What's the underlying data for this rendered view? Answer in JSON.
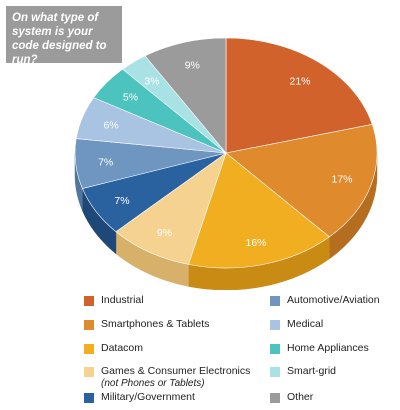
{
  "title": "On what type of system is your code designed to run?",
  "chart_data": {
    "type": "pie",
    "title": "On what type of system is your code designed to run?",
    "slices": [
      {
        "label": "Industrial",
        "value": 21,
        "value_label": "21%",
        "color": "#d2622b",
        "side": "#a84c1f"
      },
      {
        "label": "Smartphones & Tablets",
        "value": 17,
        "value_label": "17%",
        "color": "#df8a2c",
        "side": "#b56e20"
      },
      {
        "label": "Datacom",
        "value": 16,
        "value_label": "16%",
        "color": "#f2ae21",
        "side": "#c98b14"
      },
      {
        "label": "Games & Consumer Electronics",
        "sublabel": "(not Phones or Tablets)",
        "value": 9,
        "value_label": "9%",
        "color": "#f6d291",
        "side": "#d7b06a"
      },
      {
        "label": "Military/Government",
        "value": 7,
        "value_label": "7%",
        "color": "#2a62a0",
        "side": "#1d4878"
      },
      {
        "label": "Automotive/Aviation",
        "value": 7,
        "value_label": "7%",
        "color": "#6e96c0",
        "side": "#52769b"
      },
      {
        "label": "Medical",
        "value": 6,
        "value_label": "6%",
        "color": "#a9c3e2",
        "side": "#87a0bf"
      },
      {
        "label": "Home Appliances",
        "value": 5,
        "value_label": "5%",
        "color": "#4cc3bf",
        "side": "#379b98"
      },
      {
        "label": "Smart-grid",
        "value": 3,
        "value_label": "3%",
        "color": "#a8e2e4",
        "side": "#82bcbe"
      },
      {
        "label": "Other",
        "value": 9,
        "value_label": "9%",
        "color": "#9b9b9b",
        "side": "#767676"
      }
    ],
    "legend_placement": "bottom"
  }
}
